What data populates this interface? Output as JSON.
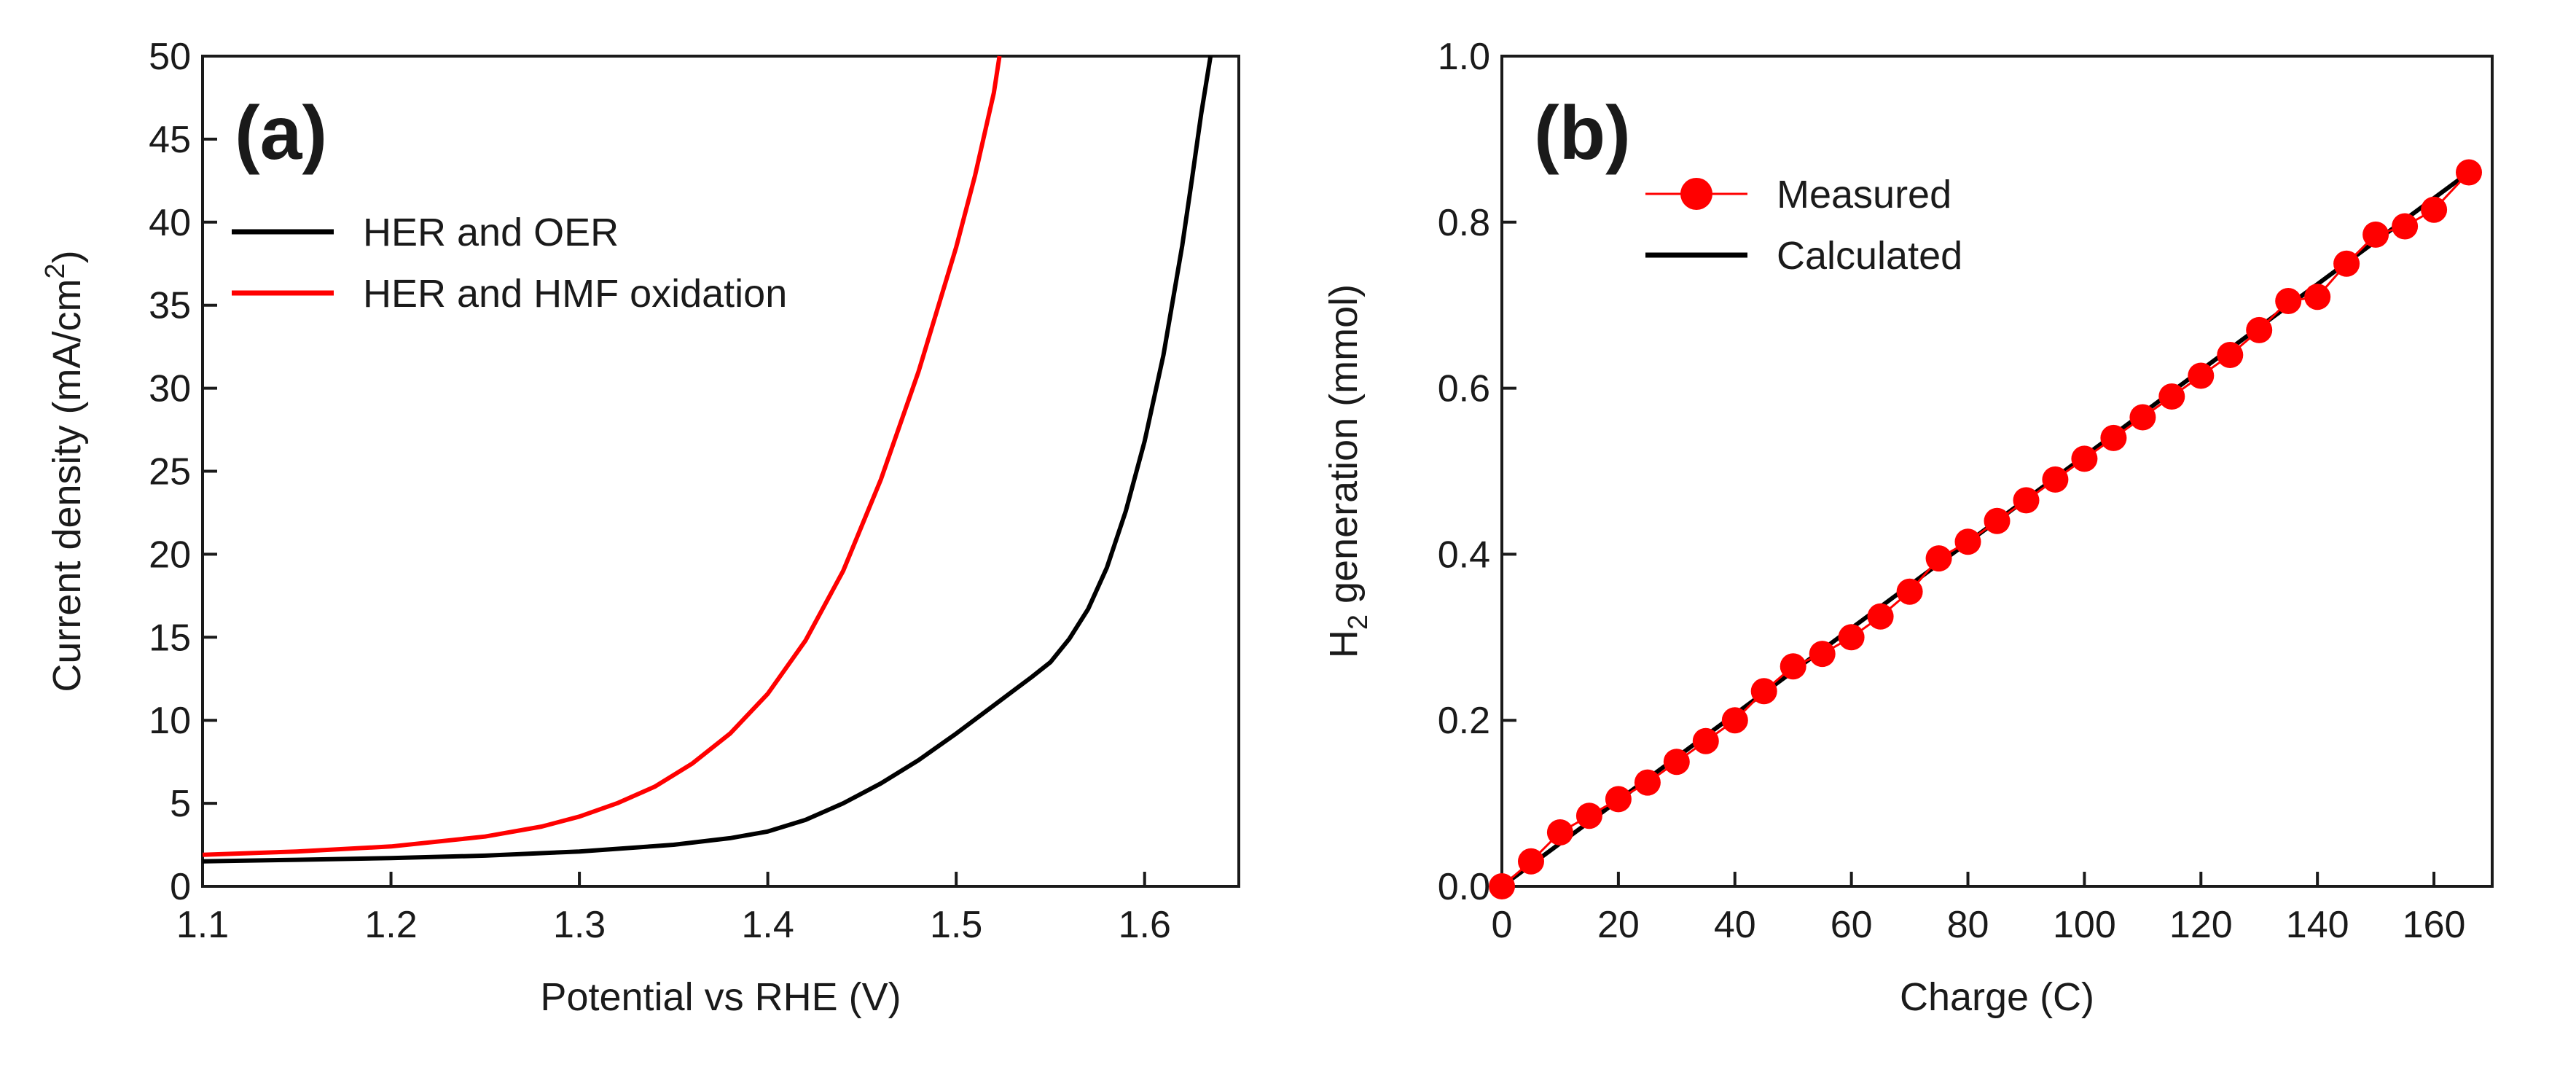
{
  "chart_data": [
    {
      "type": "line",
      "panel_label": "(a)",
      "xlabel": "Potential vs RHE (V)",
      "ylabel_prefix": "Current density (mA/cm",
      "ylabel_sup": "2",
      "ylabel_suffix": ")",
      "xlim": [
        1.1,
        1.65
      ],
      "ylim": [
        0,
        50
      ],
      "x_ticks": [
        1.1,
        1.2,
        1.3,
        1.4,
        1.5,
        1.6
      ],
      "x_tick_labels": [
        "1.1",
        "1.2",
        "1.3",
        "1.4",
        "1.5",
        "1.6"
      ],
      "y_ticks": [
        0,
        5,
        10,
        15,
        20,
        25,
        30,
        35,
        40,
        45,
        50
      ],
      "y_tick_labels": [
        "0",
        "5",
        "10",
        "15",
        "20",
        "25",
        "30",
        "35",
        "40",
        "45",
        "50"
      ],
      "legend_position": "top-left",
      "series": [
        {
          "name": "HER and OER",
          "color": "#000000",
          "x": [
            1.1,
            1.15,
            1.2,
            1.25,
            1.3,
            1.35,
            1.38,
            1.4,
            1.42,
            1.44,
            1.46,
            1.48,
            1.5,
            1.52,
            1.54,
            1.55,
            1.56,
            1.57,
            1.58,
            1.59,
            1.6,
            1.61,
            1.62,
            1.625,
            1.63,
            1.635
          ],
          "y": [
            1.5,
            1.6,
            1.7,
            1.85,
            2.1,
            2.5,
            2.9,
            3.3,
            4.0,
            5.0,
            6.2,
            7.6,
            9.2,
            10.9,
            12.6,
            13.5,
            14.9,
            16.7,
            19.2,
            22.6,
            26.8,
            32.0,
            38.6,
            42.5,
            46.5,
            50.0
          ]
        },
        {
          "name": "HER and HMF oxidation",
          "color": "#ff0000",
          "x": [
            1.1,
            1.15,
            1.2,
            1.25,
            1.28,
            1.3,
            1.32,
            1.34,
            1.36,
            1.38,
            1.4,
            1.42,
            1.44,
            1.46,
            1.48,
            1.5,
            1.51,
            1.52,
            1.523
          ],
          "y": [
            1.9,
            2.1,
            2.4,
            3.0,
            3.6,
            4.2,
            5.0,
            6.0,
            7.4,
            9.2,
            11.6,
            14.8,
            19.0,
            24.5,
            31.0,
            38.5,
            42.8,
            47.8,
            50.0
          ]
        }
      ]
    },
    {
      "type": "scatter",
      "panel_label": "(b)",
      "xlabel": "Charge (C)",
      "ylabel_prefix": "H",
      "ylabel_sub": "2",
      "ylabel_suffix": " generation (mmol)",
      "xlim": [
        0,
        170
      ],
      "ylim": [
        0.0,
        1.0
      ],
      "x_ticks": [
        0,
        20,
        40,
        60,
        80,
        100,
        120,
        140,
        160
      ],
      "x_tick_labels": [
        "0",
        "20",
        "40",
        "60",
        "80",
        "100",
        "120",
        "140",
        "160"
      ],
      "y_ticks": [
        0.0,
        0.2,
        0.4,
        0.6,
        0.8,
        1.0
      ],
      "y_tick_labels": [
        "0.0",
        "0.2",
        "0.4",
        "0.6",
        "0.8",
        "1.0"
      ],
      "legend_position": "top-left",
      "series": [
        {
          "name": "Measured",
          "color": "#ff0000",
          "marker": "circle",
          "x": [
            0,
            5,
            10,
            15,
            20,
            25,
            30,
            35,
            40,
            45,
            50,
            55,
            60,
            65,
            70,
            75,
            80,
            85,
            90,
            95,
            100,
            105,
            110,
            115,
            120,
            125,
            130,
            135,
            140,
            145,
            150,
            155,
            160,
            166
          ],
          "y": [
            0.0,
            0.03,
            0.065,
            0.085,
            0.105,
            0.125,
            0.15,
            0.175,
            0.2,
            0.235,
            0.265,
            0.28,
            0.3,
            0.325,
            0.355,
            0.395,
            0.415,
            0.44,
            0.465,
            0.49,
            0.515,
            0.54,
            0.565,
            0.59,
            0.615,
            0.64,
            0.67,
            0.705,
            0.71,
            0.75,
            0.785,
            0.795,
            0.815,
            0.86
          ]
        },
        {
          "name": "Calculated",
          "color": "#000000",
          "x": [
            0,
            166
          ],
          "y": [
            0.0,
            0.86
          ]
        }
      ]
    }
  ]
}
